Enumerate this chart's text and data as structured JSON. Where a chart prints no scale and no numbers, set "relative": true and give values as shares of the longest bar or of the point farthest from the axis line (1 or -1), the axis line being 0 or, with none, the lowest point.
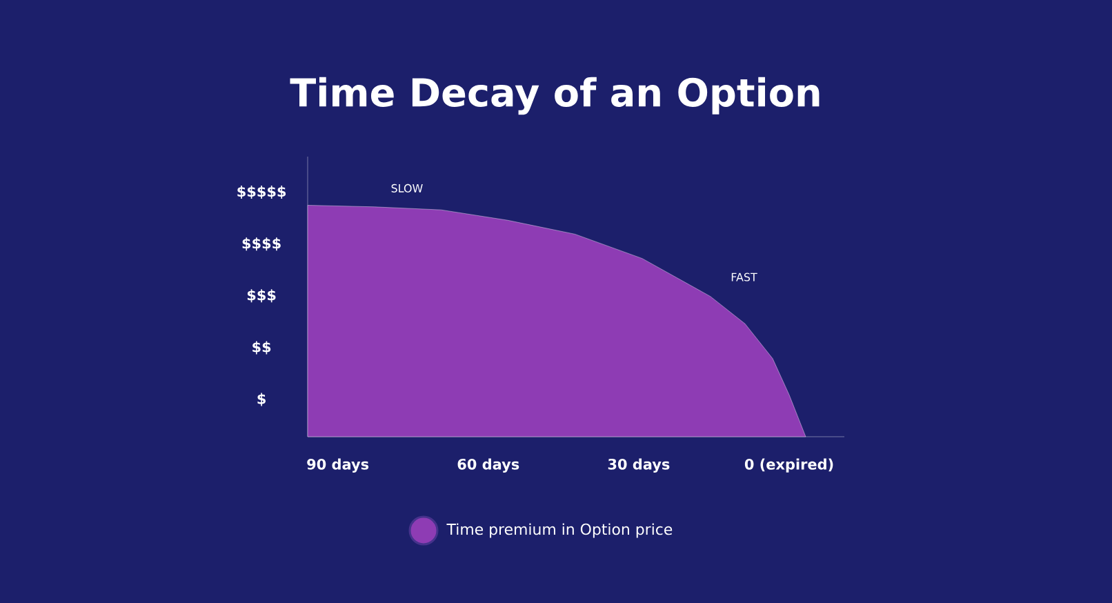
{
  "chart_data": {
    "type": "area",
    "title": "Time Decay of an Option",
    "relative": true,
    "x": [
      96,
      82.7,
      69.4,
      56.1,
      42.7,
      29.3,
      15.7,
      8.8,
      3.3,
      0,
      -3.3
    ],
    "series": [
      {
        "name": "Time premium in Option price",
        "color": "#8e3cb4",
        "values": [
          1,
          0.993,
          0.98,
          0.935,
          0.875,
          0.77,
          0.606,
          0.488,
          0.338,
          0.181,
          0
        ]
      }
    ],
    "xlim": [
      96,
      -11
    ],
    "xticks": [
      {
        "value": 90,
        "label": "90 days"
      },
      {
        "value": 60,
        "label": "60 days"
      },
      {
        "value": 30,
        "label": "30 days"
      },
      {
        "value": 0,
        "label": "0 (expired)"
      }
    ],
    "annotations": [
      "SLOW",
      "FAST",
      "$$$$$",
      "$$$$",
      "$$$",
      "$$",
      "$"
    ],
    "legend": "bottom"
  }
}
